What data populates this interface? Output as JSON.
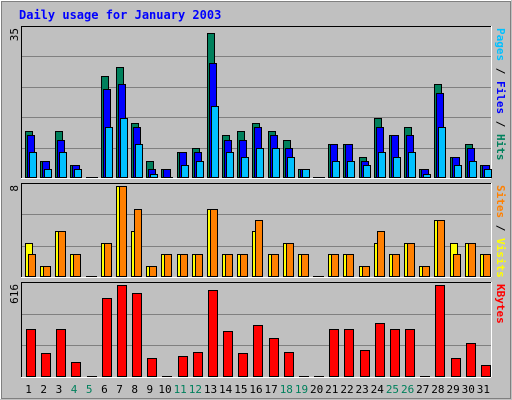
{
  "chart_data": {
    "type": "bar",
    "title": "Daily usage for January 2003",
    "categories": [
      "1",
      "2",
      "3",
      "4",
      "5",
      "6",
      "7",
      "8",
      "9",
      "10",
      "11",
      "12",
      "13",
      "14",
      "15",
      "16",
      "17",
      "18",
      "19",
      "20",
      "21",
      "22",
      "23",
      "24",
      "25",
      "26",
      "27",
      "28",
      "29",
      "30",
      "31"
    ],
    "weekend_days": [
      "4",
      "5",
      "11",
      "12",
      "18",
      "19",
      "25",
      "26"
    ],
    "colors": {
      "title": "#0000ff",
      "hits": "#00805c",
      "files": "#0000ff",
      "pages": "#00c0ff",
      "visits": "#ffff00",
      "sites": "#ff8000",
      "kbytes": "#ff0000",
      "weekend_label": "#00805c",
      "weekday_label": "#000000",
      "gridline": "#808080",
      "panel_bg": "#c0c0c0"
    },
    "panels": [
      {
        "id": "usage",
        "max_label": "35",
        "ylim": [
          0,
          35
        ],
        "right_label": [
          {
            "text": "Pages",
            "color": "#00c0ff"
          },
          {
            "text": " / ",
            "color": "#000000"
          },
          {
            "text": "Files",
            "color": "#0000ff"
          },
          {
            "text": " / ",
            "color": "#000000"
          },
          {
            "text": "Hits",
            "color": "#00805c"
          }
        ],
        "series": [
          {
            "key": "hits",
            "values": [
              11,
              4,
              11,
              3,
              0,
              24,
              26,
              13,
              4,
              2,
              6,
              7,
              34,
              10,
              11,
              13,
              11,
              9,
              2,
              0,
              8,
              8,
              5,
              14,
              10,
              12,
              2,
              22,
              5,
              8,
              3
            ]
          },
          {
            "key": "files",
            "values": [
              10,
              4,
              9,
              3,
              0,
              21,
              22,
              12,
              2,
              2,
              6,
              6,
              27,
              9,
              9,
              12,
              10,
              7,
              2,
              0,
              8,
              8,
              4,
              12,
              10,
              10,
              2,
              20,
              5,
              7,
              3
            ]
          },
          {
            "key": "pages",
            "values": [
              6,
              2,
              6,
              2,
              0,
              12,
              14,
              8,
              1,
              0,
              3,
              4,
              17,
              6,
              5,
              7,
              7,
              5,
              2,
              0,
              4,
              4,
              3,
              6,
              5,
              6,
              1,
              12,
              3,
              4,
              2
            ]
          }
        ]
      },
      {
        "id": "visits",
        "max_label": "8",
        "ylim": [
          0,
          8
        ],
        "right_label": [
          {
            "text": "Sites",
            "color": "#ff8000"
          },
          {
            "text": " / ",
            "color": "#000000"
          },
          {
            "text": "Visits",
            "color": "#ffff00"
          }
        ],
        "series": [
          {
            "key": "visits",
            "values": [
              3,
              1,
              4,
              2,
              0,
              3,
              8,
              4,
              1,
              2,
              2,
              2,
              6,
              2,
              2,
              4,
              2,
              3,
              2,
              0,
              2,
              2,
              1,
              3,
              2,
              3,
              1,
              5,
              3,
              3,
              2
            ]
          },
          {
            "key": "sites",
            "values": [
              2,
              1,
              4,
              2,
              0,
              3,
              8,
              6,
              1,
              2,
              2,
              2,
              6,
              2,
              2,
              5,
              2,
              3,
              2,
              0,
              2,
              2,
              1,
              4,
              2,
              3,
              1,
              5,
              2,
              3,
              2
            ]
          }
        ]
      },
      {
        "id": "kbytes",
        "max_label": "616",
        "ylim": [
          0,
          616
        ],
        "right_label": [
          {
            "text": "KBytes",
            "color": "#ff0000"
          }
        ],
        "series": [
          {
            "key": "kbytes",
            "values": [
              320,
              160,
              320,
              100,
              0,
              528,
              616,
              560,
              130,
              0,
              140,
              170,
              580,
              310,
              160,
              350,
              260,
              170,
              0,
              0,
              320,
              320,
              180,
              360,
              320,
              320,
              0,
              616,
              130,
              230,
              80
            ]
          }
        ]
      }
    ]
  }
}
